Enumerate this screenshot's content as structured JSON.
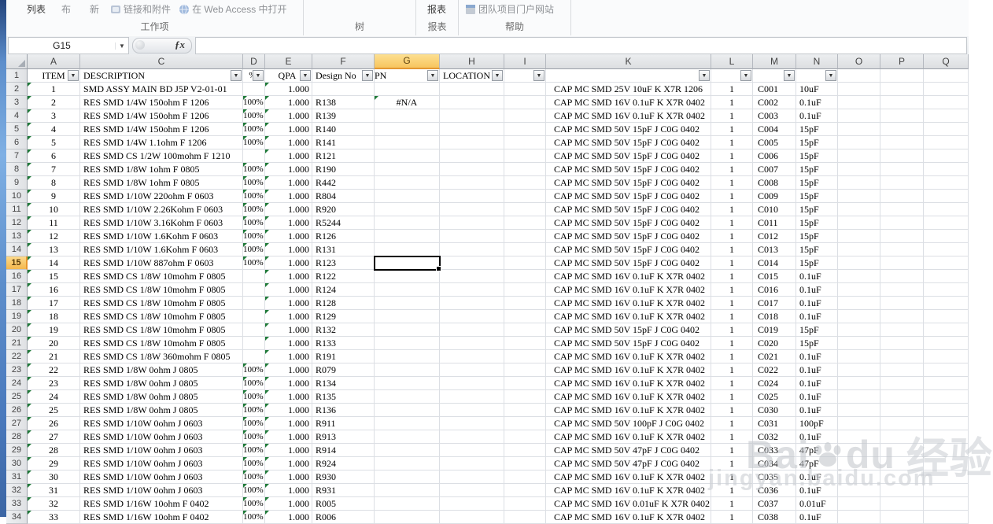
{
  "ribbon": {
    "groups": [
      {
        "label": "工作项",
        "buttons": [
          {
            "label": "列表",
            "style": "dark",
            "icon": null
          },
          {
            "label": "布",
            "style": "gray",
            "icon": null
          },
          {
            "label": "新",
            "style": "gray",
            "icon": null
          },
          {
            "label": "链接和附件",
            "style": "gray",
            "icon": "link-attachment-icon"
          },
          {
            "label": "在 Web Access 中打开",
            "style": "gray",
            "icon": "web-access-icon"
          }
        ]
      },
      {
        "label": "树",
        "buttons": []
      },
      {
        "label": "报表",
        "buttons": [
          {
            "label": "报表",
            "style": "dark",
            "icon": null
          }
        ]
      },
      {
        "label": "帮助",
        "buttons": [
          {
            "label": "团队项目门户网站",
            "style": "gray",
            "icon": "team-portal-icon"
          }
        ]
      }
    ]
  },
  "formula_bar": {
    "name_box": "G15",
    "fx_glyph": "ƒx",
    "formula_value": ""
  },
  "sheet": {
    "selected_cell": "G15",
    "selected_column": "G",
    "selected_row_number": 15,
    "columns": [
      {
        "letter": "A",
        "header": "ITEM",
        "filter": true
      },
      {
        "letter": "C",
        "header": "DESCRIPTION",
        "filter": true
      },
      {
        "letter": "D",
        "header": "%",
        "filter": true
      },
      {
        "letter": "E",
        "header": "QPA",
        "filter": true
      },
      {
        "letter": "F",
        "header": "Design No",
        "filter": true
      },
      {
        "letter": "G",
        "header": "PN",
        "filter": true
      },
      {
        "letter": "H",
        "header": "LOCATION",
        "filter": true
      },
      {
        "letter": "I",
        "header": "",
        "filter": true
      },
      {
        "letter": "K",
        "header": "",
        "filter": true
      },
      {
        "letter": "L",
        "header": "",
        "filter": true
      },
      {
        "letter": "M",
        "header": "",
        "filter": true
      },
      {
        "letter": "N",
        "header": "",
        "filter": true
      },
      {
        "letter": "O",
        "header": "",
        "filter": false
      },
      {
        "letter": "P",
        "header": "",
        "filter": false
      },
      {
        "letter": "Q",
        "header": "",
        "filter": false
      }
    ],
    "rows": [
      {
        "A": "1",
        "C": "SMD ASSY MAIN BD J5P V2-01-01",
        "D": "",
        "E": "1.000",
        "F": "",
        "G": "",
        "H": "",
        "K": "CAP MC SMD 25V 10uF K X7R 1206",
        "L": "1",
        "M": "C001",
        "N": "10uF"
      },
      {
        "A": "2",
        "C": "RES SMD 1/4W 150ohm F 1206",
        "D": "100%",
        "E": "1.000",
        "F": "R138",
        "G": "#N/A",
        "H": "",
        "K": "CAP MC SMD 16V 0.1uF K X7R 0402",
        "L": "1",
        "M": "C002",
        "N": "0.1uF"
      },
      {
        "A": "3",
        "C": "RES SMD 1/4W 150ohm F 1206",
        "D": "100%",
        "E": "1.000",
        "F": "R139",
        "G": "",
        "H": "",
        "K": "CAP MC SMD 16V 0.1uF K X7R 0402",
        "L": "1",
        "M": "C003",
        "N": "0.1uF"
      },
      {
        "A": "4",
        "C": "RES SMD 1/4W 150ohm F 1206",
        "D": "100%",
        "E": "1.000",
        "F": "R140",
        "G": "",
        "H": "",
        "K": "CAP MC SMD 50V 15pF J C0G 0402",
        "L": "1",
        "M": "C004",
        "N": "15pF"
      },
      {
        "A": "5",
        "C": "RES SMD 1/4W 1.1ohm F 1206",
        "D": "100%",
        "E": "1.000",
        "F": "R141",
        "G": "",
        "H": "",
        "K": "CAP MC SMD 50V 15pF J C0G 0402",
        "L": "1",
        "M": "C005",
        "N": "15pF"
      },
      {
        "A": "6",
        "C": "RES SMD CS 1/2W 100mohm F 1210",
        "D": "",
        "E": "1.000",
        "F": "R121",
        "G": "",
        "H": "",
        "K": "CAP MC SMD 50V 15pF J C0G 0402",
        "L": "1",
        "M": "C006",
        "N": "15pF"
      },
      {
        "A": "7",
        "C": "RES SMD 1/8W 1ohm F 0805",
        "D": "100%",
        "E": "1.000",
        "F": "R190",
        "G": "",
        "H": "",
        "K": "CAP MC SMD 50V 15pF J C0G 0402",
        "L": "1",
        "M": "C007",
        "N": "15pF"
      },
      {
        "A": "8",
        "C": "RES SMD 1/8W 1ohm F 0805",
        "D": "100%",
        "E": "1.000",
        "F": "R442",
        "G": "",
        "H": "",
        "K": "CAP MC SMD 50V 15pF J C0G 0402",
        "L": "1",
        "M": "C008",
        "N": "15pF"
      },
      {
        "A": "9",
        "C": "RES SMD 1/10W 220ohm F 0603",
        "D": "100%",
        "E": "1.000",
        "F": "R804",
        "G": "",
        "H": "",
        "K": "CAP MC SMD 50V 15pF J C0G 0402",
        "L": "1",
        "M": "C009",
        "N": "15pF"
      },
      {
        "A": "10",
        "C": "RES SMD 1/10W 2.26Kohm F 0603",
        "D": "100%",
        "E": "1.000",
        "F": "R920",
        "G": "",
        "H": "",
        "K": "CAP MC SMD 50V 15pF J C0G 0402",
        "L": "1",
        "M": "C010",
        "N": "15pF"
      },
      {
        "A": "11",
        "C": "RES SMD 1/10W 3.16Kohm F 0603",
        "D": "100%",
        "E": "1.000",
        "F": "R5244",
        "G": "",
        "H": "",
        "K": "CAP MC SMD 50V 15pF J C0G 0402",
        "L": "1",
        "M": "C011",
        "N": "15pF"
      },
      {
        "A": "12",
        "C": "RES SMD 1/10W 1.6Kohm F 0603",
        "D": "100%",
        "E": "1.000",
        "F": "R126",
        "G": "",
        "H": "",
        "K": "CAP MC SMD 50V 15pF J C0G 0402",
        "L": "1",
        "M": "C012",
        "N": "15pF"
      },
      {
        "A": "13",
        "C": "RES SMD 1/10W 1.6Kohm F 0603",
        "D": "100%",
        "E": "1.000",
        "F": "R131",
        "G": "",
        "H": "",
        "K": "CAP MC SMD 50V 15pF J C0G 0402",
        "L": "1",
        "M": "C013",
        "N": "15pF"
      },
      {
        "A": "14",
        "C": "RES SMD 1/10W 887ohm F 0603",
        "D": "100%",
        "E": "1.000",
        "F": "R123",
        "G": "",
        "H": "",
        "K": "CAP MC SMD 50V 15pF J C0G 0402",
        "L": "1",
        "M": "C014",
        "N": "15pF"
      },
      {
        "A": "15",
        "C": "RES SMD CS 1/8W 10mohm F 0805",
        "D": "",
        "E": "1.000",
        "F": "R122",
        "G": "",
        "H": "",
        "K": "CAP MC SMD 16V 0.1uF K X7R 0402",
        "L": "1",
        "M": "C015",
        "N": "0.1uF"
      },
      {
        "A": "16",
        "C": "RES SMD CS 1/8W 10mohm F 0805",
        "D": "",
        "E": "1.000",
        "F": "R124",
        "G": "",
        "H": "",
        "K": "CAP MC SMD 16V 0.1uF K X7R 0402",
        "L": "1",
        "M": "C016",
        "N": "0.1uF"
      },
      {
        "A": "17",
        "C": "RES SMD CS 1/8W 10mohm F 0805",
        "D": "",
        "E": "1.000",
        "F": "R128",
        "G": "",
        "H": "",
        "K": "CAP MC SMD 16V 0.1uF K X7R 0402",
        "L": "1",
        "M": "C017",
        "N": "0.1uF"
      },
      {
        "A": "18",
        "C": "RES SMD CS 1/8W 10mohm F 0805",
        "D": "",
        "E": "1.000",
        "F": "R129",
        "G": "",
        "H": "",
        "K": "CAP MC SMD 16V 0.1uF K X7R 0402",
        "L": "1",
        "M": "C018",
        "N": "0.1uF"
      },
      {
        "A": "19",
        "C": "RES SMD CS 1/8W 10mohm F 0805",
        "D": "",
        "E": "1.000",
        "F": "R132",
        "G": "",
        "H": "",
        "K": "CAP MC SMD 50V 15pF J C0G 0402",
        "L": "1",
        "M": "C019",
        "N": "15pF"
      },
      {
        "A": "20",
        "C": "RES SMD CS 1/8W 10mohm F 0805",
        "D": "",
        "E": "1.000",
        "F": "R133",
        "G": "",
        "H": "",
        "K": "CAP MC SMD 50V 15pF J C0G 0402",
        "L": "1",
        "M": "C020",
        "N": "15pF"
      },
      {
        "A": "21",
        "C": "RES SMD CS 1/8W 360mohm F 0805",
        "D": "",
        "E": "1.000",
        "F": "R191",
        "G": "",
        "H": "",
        "K": "CAP MC SMD 16V 0.1uF K X7R 0402",
        "L": "1",
        "M": "C021",
        "N": "0.1uF"
      },
      {
        "A": "22",
        "C": "RES SMD 1/8W 0ohm J 0805",
        "D": "100%",
        "E": "1.000",
        "F": "R079",
        "G": "",
        "H": "",
        "K": "CAP MC SMD 16V 0.1uF K X7R 0402",
        "L": "1",
        "M": "C022",
        "N": "0.1uF"
      },
      {
        "A": "23",
        "C": "RES SMD 1/8W 0ohm J 0805",
        "D": "100%",
        "E": "1.000",
        "F": "R134",
        "G": "",
        "H": "",
        "K": "CAP MC SMD 16V 0.1uF K X7R 0402",
        "L": "1",
        "M": "C024",
        "N": "0.1uF"
      },
      {
        "A": "24",
        "C": "RES SMD 1/8W 0ohm J 0805",
        "D": "100%",
        "E": "1.000",
        "F": "R135",
        "G": "",
        "H": "",
        "K": "CAP MC SMD 16V 0.1uF K X7R 0402",
        "L": "1",
        "M": "C025",
        "N": "0.1uF"
      },
      {
        "A": "25",
        "C": "RES SMD 1/8W 0ohm J 0805",
        "D": "100%",
        "E": "1.000",
        "F": "R136",
        "G": "",
        "H": "",
        "K": "CAP MC SMD 16V 0.1uF K X7R 0402",
        "L": "1",
        "M": "C030",
        "N": "0.1uF"
      },
      {
        "A": "26",
        "C": "RES SMD 1/10W 0ohm J 0603",
        "D": "100%",
        "E": "1.000",
        "F": "R911",
        "G": "",
        "H": "",
        "K": "CAP MC SMD 50V 100pF J C0G 0402",
        "L": "1",
        "M": "C031",
        "N": "100pF"
      },
      {
        "A": "27",
        "C": "RES SMD 1/10W 0ohm J 0603",
        "D": "100%",
        "E": "1.000",
        "F": "R913",
        "G": "",
        "H": "",
        "K": "CAP MC SMD 16V 0.1uF K X7R 0402",
        "L": "1",
        "M": "C032",
        "N": "0.1uF"
      },
      {
        "A": "28",
        "C": "RES SMD 1/10W 0ohm J 0603",
        "D": "100%",
        "E": "1.000",
        "F": "R914",
        "G": "",
        "H": "",
        "K": "CAP MC SMD 50V 47pF J C0G 0402",
        "L": "1",
        "M": "C033",
        "N": "47pF"
      },
      {
        "A": "29",
        "C": "RES SMD 1/10W 0ohm J 0603",
        "D": "100%",
        "E": "1.000",
        "F": "R924",
        "G": "",
        "H": "",
        "K": "CAP MC SMD 50V 47pF J C0G 0402",
        "L": "1",
        "M": "C034",
        "N": "47pF"
      },
      {
        "A": "30",
        "C": "RES SMD 1/10W 0ohm J 0603",
        "D": "100%",
        "E": "1.000",
        "F": "R930",
        "G": "",
        "H": "",
        "K": "CAP MC SMD 16V 0.1uF K X7R 0402",
        "L": "1",
        "M": "C035",
        "N": "0.1uF"
      },
      {
        "A": "31",
        "C": "RES SMD 1/10W 0ohm J 0603",
        "D": "100%",
        "E": "1.000",
        "F": "R931",
        "G": "",
        "H": "",
        "K": "CAP MC SMD 16V 0.1uF K X7R 0402",
        "L": "1",
        "M": "C036",
        "N": "0.1uF"
      },
      {
        "A": "32",
        "C": "RES SMD 1/16W 10ohm F 0402",
        "D": "100%",
        "E": "1.000",
        "F": "R005",
        "G": "",
        "H": "",
        "K": "CAP MC SMD 16V 0.01uF K X7R 0402",
        "L": "1",
        "M": "C037",
        "N": "0.01uF"
      },
      {
        "A": "33",
        "C": "RES SMD 1/16W 10ohm F 0402",
        "D": "100%",
        "E": "1.000",
        "F": "R006",
        "G": "",
        "H": "",
        "K": "CAP MC SMD 16V 0.1uF K X7R 0402",
        "L": "1",
        "M": "C038",
        "N": "0.1uF"
      }
    ]
  },
  "watermark": {
    "brand_prefix": "Bai",
    "brand_suffix": "du",
    "brand_cn": "经验",
    "url": "jingyan.baidu.com"
  },
  "colors": {
    "selected_header": "#F9C863",
    "selection_border": "#000000",
    "error_triangle": "#1F7A38",
    "window_edge": "#5D8ECB"
  }
}
